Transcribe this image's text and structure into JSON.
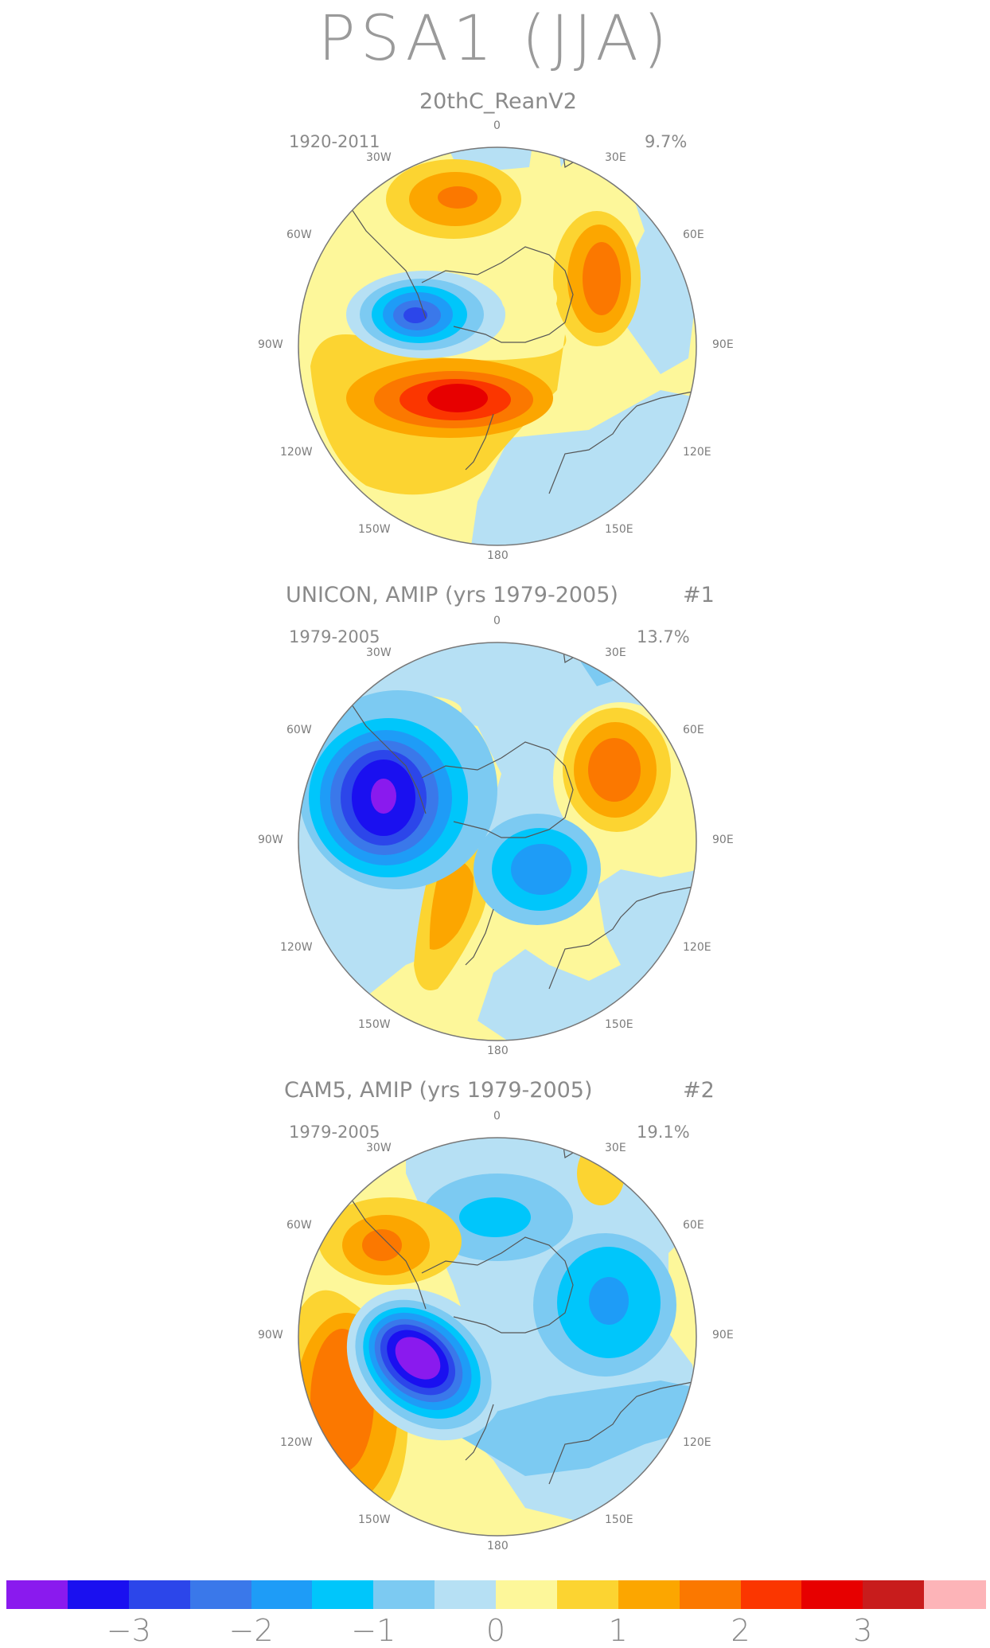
{
  "title": "PSA1 (JJA)",
  "panels": [
    {
      "title": "20thC_ReanV2",
      "number": "",
      "years": "1920-2011",
      "percent": "9.7%"
    },
    {
      "title": "UNICON, AMIP (yrs 1979-2005)",
      "number": "#1",
      "years": "1979-2005",
      "percent": "13.7%"
    },
    {
      "title": "CAM5, AMIP (yrs 1979-2005)",
      "number": "#2",
      "years": "1979-2005",
      "percent": "19.1%"
    }
  ],
  "longitude_labels": {
    "top": "0",
    "bottom": "180",
    "w30": "30W",
    "w60": "60W",
    "w90": "90W",
    "w120": "120W",
    "w150": "150W",
    "e30": "30E",
    "e60": "60E",
    "e90": "90E",
    "e120": "120E",
    "e150": "150E"
  },
  "colorbar": {
    "colors": [
      "#8a1aee",
      "#1a10f0",
      "#2c46ea",
      "#3a78ea",
      "#1e9cf7",
      "#00c6fb",
      "#7ccaf2",
      "#b6e0f4",
      "#fdf79a",
      "#fcd431",
      "#fca600",
      "#fb7800",
      "#fb3600",
      "#e70000",
      "#c81c1c",
      "#fdb4b8"
    ],
    "labels": [
      "-3",
      "-2",
      "-1",
      "0",
      "1",
      "2",
      "3"
    ]
  },
  "fills": {
    "ocean_default": "#fdf79a",
    "neg1": "#b6e0f4",
    "neg2": "#7ccaf2",
    "neg3": "#00c6fb",
    "neg4": "#1e9cf7",
    "neg5": "#3a78ea",
    "neg6": "#2c46ea",
    "neg7": "#1a10f0",
    "neg8": "#8a1aee",
    "pos1": "#fcd431",
    "pos2": "#fca600",
    "pos3": "#fb7800",
    "pos4": "#fb3600",
    "pos5": "#e70000"
  }
}
